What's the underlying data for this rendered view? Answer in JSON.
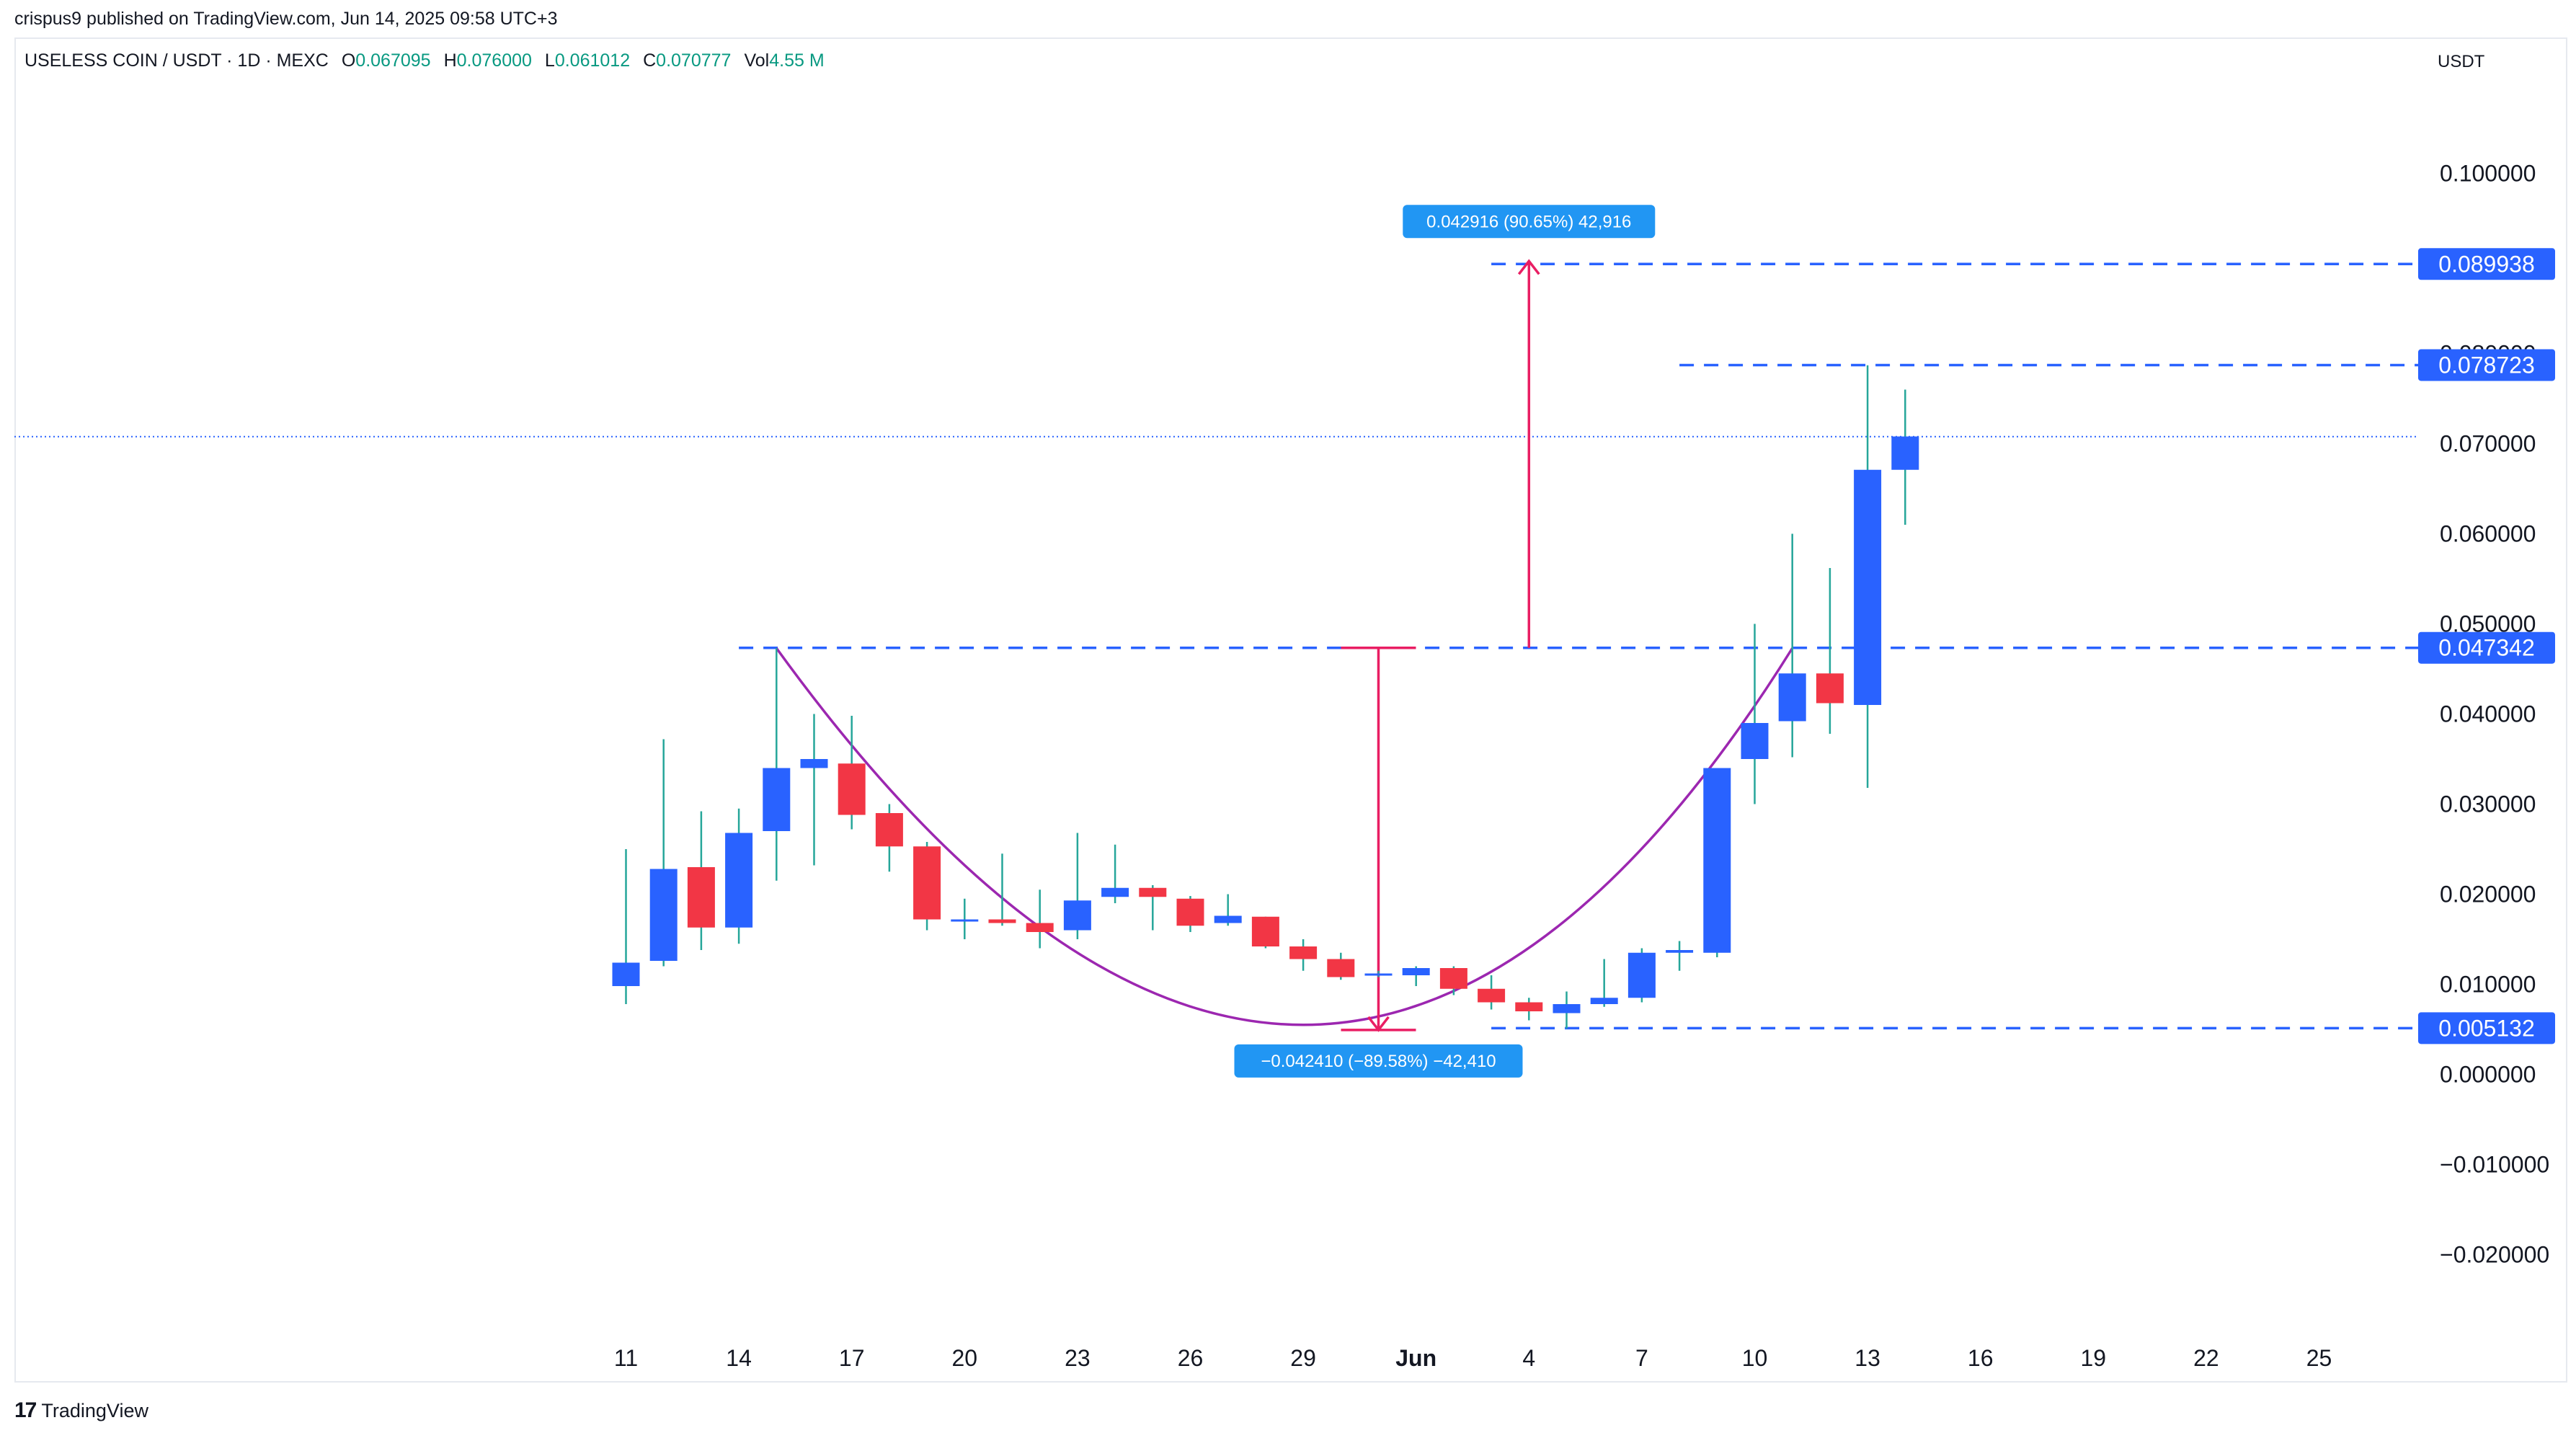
{
  "header": {
    "published": "crispus9 published on TradingView.com, Jun 14, 2025 09:58 UTC+3",
    "symbol": "USELESS COIN / USDT · 1D · MEXC",
    "ohlc": [
      {
        "label": "O",
        "value": "0.067095"
      },
      {
        "label": "H",
        "value": "0.076000"
      },
      {
        "label": "L",
        "value": "0.061012"
      },
      {
        "label": "C",
        "value": "0.070777"
      },
      {
        "label": "Vol",
        "value": "4.55 M"
      }
    ]
  },
  "axis_currency": "USDT",
  "brand": "TradingView",
  "colors": {
    "up": "#2962ff",
    "down": "#f23645",
    "wick": "#26a69a",
    "level": "#2962ff",
    "measure": "#e91e63",
    "curve": "#9c27b0",
    "tag_bg": "#2962ff",
    "measure_bg": "#2196f3"
  },
  "chart_data": {
    "type": "candlestick",
    "ylim": [
      -0.025,
      0.115
    ],
    "y_ticks": [
      "0.100000",
      "0.090000",
      "0.080000",
      "0.070000",
      "0.060000",
      "0.050000",
      "0.040000",
      "0.030000",
      "0.020000",
      "0.010000",
      "0.000000",
      "−0.010000",
      "−0.020000"
    ],
    "x_ticks": [
      {
        "label": "11",
        "date": "2025-05-11"
      },
      {
        "label": "14",
        "date": "2025-05-14"
      },
      {
        "label": "17",
        "date": "2025-05-17"
      },
      {
        "label": "20",
        "date": "2025-05-20"
      },
      {
        "label": "23",
        "date": "2025-05-23"
      },
      {
        "label": "26",
        "date": "2025-05-26"
      },
      {
        "label": "29",
        "date": "2025-05-29"
      },
      {
        "label": "Jun",
        "date": "2025-06-01",
        "bold": true
      },
      {
        "label": "4",
        "date": "2025-06-04"
      },
      {
        "label": "7",
        "date": "2025-06-07"
      },
      {
        "label": "10",
        "date": "2025-06-10"
      },
      {
        "label": "13",
        "date": "2025-06-13"
      },
      {
        "label": "16",
        "date": "2025-06-16"
      },
      {
        "label": "19",
        "date": "2025-06-19"
      },
      {
        "label": "22",
        "date": "2025-06-22"
      },
      {
        "label": "25",
        "date": "2025-06-25"
      }
    ],
    "candles": [
      {
        "date": "2025-05-11",
        "o": 0.0098,
        "h": 0.025,
        "l": 0.0078,
        "c": 0.0124
      },
      {
        "date": "2025-05-12",
        "o": 0.0126,
        "h": 0.0372,
        "l": 0.012,
        "c": 0.0228
      },
      {
        "date": "2025-05-13",
        "o": 0.023,
        "h": 0.0292,
        "l": 0.0138,
        "c": 0.0163
      },
      {
        "date": "2025-05-14",
        "o": 0.0163,
        "h": 0.0295,
        "l": 0.0145,
        "c": 0.0268
      },
      {
        "date": "2025-05-15",
        "o": 0.027,
        "h": 0.0473,
        "l": 0.0215,
        "c": 0.034
      },
      {
        "date": "2025-05-16",
        "o": 0.034,
        "h": 0.04,
        "l": 0.0232,
        "c": 0.035
      },
      {
        "date": "2025-05-17",
        "o": 0.0345,
        "h": 0.0398,
        "l": 0.0272,
        "c": 0.0288
      },
      {
        "date": "2025-05-18",
        "o": 0.029,
        "h": 0.03,
        "l": 0.0225,
        "c": 0.0253
      },
      {
        "date": "2025-05-19",
        "o": 0.0253,
        "h": 0.0258,
        "l": 0.016,
        "c": 0.0172
      },
      {
        "date": "2025-05-20",
        "o": 0.017,
        "h": 0.0195,
        "l": 0.015,
        "c": 0.0172
      },
      {
        "date": "2025-05-21",
        "o": 0.0172,
        "h": 0.0245,
        "l": 0.0165,
        "c": 0.0168
      },
      {
        "date": "2025-05-22",
        "o": 0.0168,
        "h": 0.0205,
        "l": 0.014,
        "c": 0.0158
      },
      {
        "date": "2025-05-23",
        "o": 0.016,
        "h": 0.0268,
        "l": 0.015,
        "c": 0.0193
      },
      {
        "date": "2025-05-24",
        "o": 0.0197,
        "h": 0.0255,
        "l": 0.019,
        "c": 0.0207
      },
      {
        "date": "2025-05-25",
        "o": 0.0207,
        "h": 0.021,
        "l": 0.016,
        "c": 0.0197
      },
      {
        "date": "2025-05-26",
        "o": 0.0195,
        "h": 0.0198,
        "l": 0.0158,
        "c": 0.0165
      },
      {
        "date": "2025-05-27",
        "o": 0.0168,
        "h": 0.02,
        "l": 0.0165,
        "c": 0.0176
      },
      {
        "date": "2025-05-28",
        "o": 0.0175,
        "h": 0.0175,
        "l": 0.014,
        "c": 0.0142
      },
      {
        "date": "2025-05-29",
        "o": 0.0142,
        "h": 0.015,
        "l": 0.0115,
        "c": 0.0128
      },
      {
        "date": "2025-05-30",
        "o": 0.0128,
        "h": 0.0135,
        "l": 0.0105,
        "c": 0.0108
      },
      {
        "date": "2025-05-31",
        "o": 0.011,
        "h": 0.0115,
        "l": 0.0108,
        "c": 0.0112
      },
      {
        "date": "2025-06-01",
        "o": 0.011,
        "h": 0.012,
        "l": 0.0098,
        "c": 0.0118
      },
      {
        "date": "2025-06-02",
        "o": 0.0118,
        "h": 0.012,
        "l": 0.0088,
        "c": 0.0095
      },
      {
        "date": "2025-06-03",
        "o": 0.0095,
        "h": 0.011,
        "l": 0.0072,
        "c": 0.008
      },
      {
        "date": "2025-06-04",
        "o": 0.008,
        "h": 0.0085,
        "l": 0.006,
        "c": 0.007
      },
      {
        "date": "2025-06-05",
        "o": 0.0068,
        "h": 0.0092,
        "l": 0.0051,
        "c": 0.0078
      },
      {
        "date": "2025-06-06",
        "o": 0.0078,
        "h": 0.0128,
        "l": 0.0075,
        "c": 0.0085
      },
      {
        "date": "2025-06-07",
        "o": 0.0085,
        "h": 0.014,
        "l": 0.008,
        "c": 0.0135
      },
      {
        "date": "2025-06-08",
        "o": 0.0135,
        "h": 0.0148,
        "l": 0.0115,
        "c": 0.0138
      },
      {
        "date": "2025-06-09",
        "o": 0.0135,
        "h": 0.034,
        "l": 0.013,
        "c": 0.034
      },
      {
        "date": "2025-06-10",
        "o": 0.035,
        "h": 0.05,
        "l": 0.03,
        "c": 0.039
      },
      {
        "date": "2025-06-11",
        "o": 0.0392,
        "h": 0.06,
        "l": 0.0352,
        "c": 0.0445
      },
      {
        "date": "2025-06-12",
        "o": 0.0445,
        "h": 0.0562,
        "l": 0.0378,
        "c": 0.0412
      },
      {
        "date": "2025-06-13",
        "o": 0.041,
        "h": 0.0787,
        "l": 0.0318,
        "c": 0.0671
      },
      {
        "date": "2025-06-14",
        "o": 0.0671,
        "h": 0.076,
        "l": 0.061,
        "c": 0.0708
      }
    ],
    "last_price": 0.070777,
    "levels": [
      {
        "value": 0.089938,
        "label": "0.089938",
        "from": "2025-06-03"
      },
      {
        "value": 0.078723,
        "label": "0.078723",
        "from": "2025-06-08"
      },
      {
        "value": 0.047342,
        "label": "0.047342",
        "from": "2025-05-14"
      },
      {
        "value": 0.005132,
        "label": "0.005132",
        "from": "2025-06-03"
      }
    ],
    "measures": [
      {
        "date": "2025-05-31",
        "from": 0.047342,
        "to": 0.004932,
        "label": "−0.042410 (−89.58%) −42,410"
      },
      {
        "date": "2025-06-04",
        "from": 0.047342,
        "to": 0.090258,
        "label": "0.042916 (90.65%) 42,916"
      }
    ],
    "cup_curve": [
      {
        "date": "2025-05-15",
        "y": 0.0473
      },
      {
        "date": "2025-05-29",
        "y": 0.0055
      },
      {
        "date": "2025-06-11",
        "y": 0.0473
      }
    ]
  }
}
